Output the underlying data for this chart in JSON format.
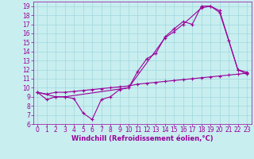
{
  "xlabel": "Windchill (Refroidissement éolien,°C)",
  "bg_color": "#c8eef0",
  "plot_bg": "#c8eef0",
  "line_color": "#990099",
  "grid_color": "#a0d8dc",
  "bottom_bar_color": "#6060a0",
  "xlim": [
    -0.5,
    23.5
  ],
  "ylim": [
    6,
    19.5
  ],
  "xticks": [
    0,
    1,
    2,
    3,
    4,
    5,
    6,
    7,
    8,
    9,
    10,
    11,
    12,
    13,
    14,
    15,
    16,
    17,
    18,
    19,
    20,
    21,
    22,
    23
  ],
  "yticks": [
    6,
    7,
    8,
    9,
    10,
    11,
    12,
    13,
    14,
    15,
    16,
    17,
    18,
    19
  ],
  "line1_x": [
    0,
    1,
    2,
    3,
    4,
    5,
    6,
    7,
    8,
    9,
    10,
    11,
    12,
    13,
    14,
    15,
    16,
    17,
    18,
    19,
    20,
    21,
    22,
    23
  ],
  "line1_y": [
    9.5,
    8.7,
    9.0,
    9.0,
    8.8,
    7.2,
    6.5,
    8.7,
    9.0,
    9.8,
    10.0,
    11.8,
    13.2,
    13.8,
    15.6,
    16.5,
    17.3,
    17.0,
    19.0,
    19.0,
    18.3,
    15.2,
    12.0,
    11.7
  ],
  "line2_x": [
    0,
    2,
    3,
    10,
    14,
    15,
    16,
    18,
    19,
    20,
    22,
    23
  ],
  "line2_y": [
    9.5,
    9.0,
    9.0,
    10.0,
    15.5,
    16.2,
    17.0,
    18.8,
    19.0,
    18.5,
    12.0,
    11.5
  ],
  "line3_x": [
    0,
    1,
    2,
    3,
    4,
    5,
    6,
    7,
    8,
    9,
    10,
    11,
    12,
    13,
    14,
    15,
    16,
    17,
    18,
    19,
    20,
    21,
    22,
    23
  ],
  "line3_y": [
    9.5,
    9.3,
    9.5,
    9.5,
    9.6,
    9.7,
    9.8,
    9.9,
    10.0,
    10.1,
    10.2,
    10.4,
    10.5,
    10.6,
    10.7,
    10.8,
    10.9,
    11.0,
    11.1,
    11.2,
    11.3,
    11.4,
    11.5,
    11.6
  ],
  "tick_fontsize": 5.5,
  "xlabel_fontsize": 6.0
}
